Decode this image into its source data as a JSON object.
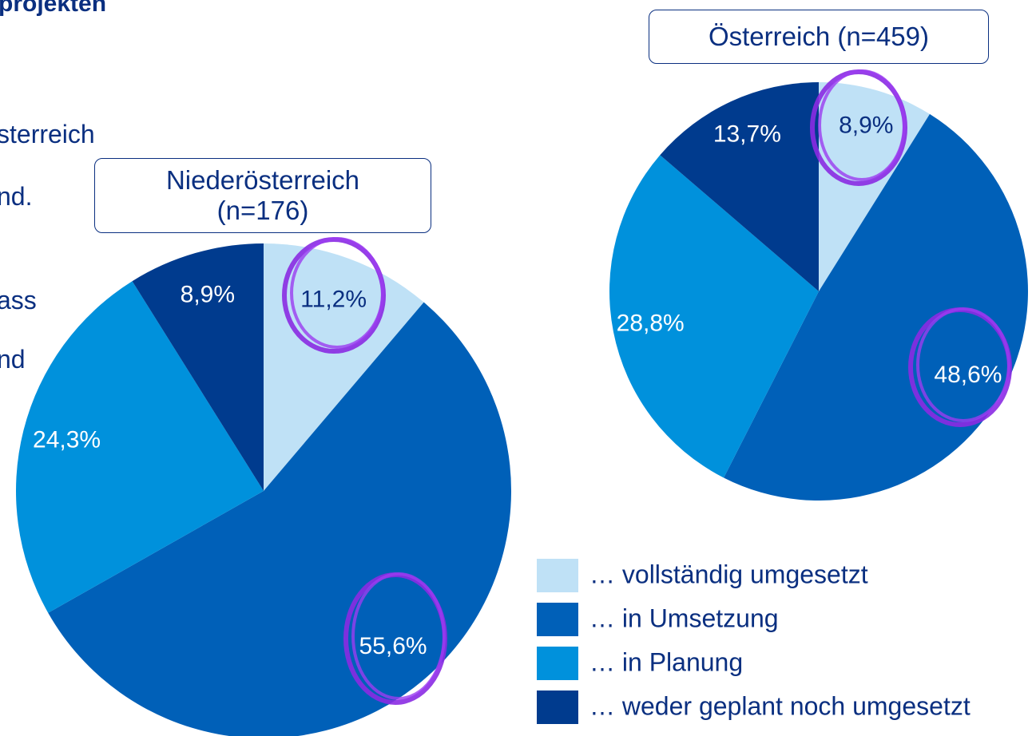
{
  "slide_text": {
    "heading": "projekten",
    "lines": [
      "sterreich",
      "nd.",
      "ass",
      "nd"
    ]
  },
  "chart_data": [
    {
      "type": "pie",
      "title": "Niederösterreich (n=176)",
      "categories": [
        "… vollständig umgesetzt",
        "… in Umsetzung",
        "… in Planung",
        "… weder geplant noch umgesetzt"
      ],
      "values": [
        11.2,
        55.6,
        24.3,
        8.9
      ],
      "value_labels": [
        "11,2%",
        "55,6%",
        "24,3%",
        "8,9%"
      ],
      "colors": [
        "#bfe1f6",
        "#0060b8",
        "#0091dc",
        "#003b8e"
      ]
    },
    {
      "type": "pie",
      "title": "Österreich (n=459)",
      "categories": [
        "… vollständig umgesetzt",
        "… in Umsetzung",
        "… in Planung",
        "… weder geplant noch umgesetzt"
      ],
      "values": [
        8.9,
        48.6,
        28.8,
        13.7
      ],
      "value_labels": [
        "8,9%",
        "48,6%",
        "28,8%",
        "13,7%"
      ],
      "colors": [
        "#bfe1f6",
        "#0060b8",
        "#0091dc",
        "#003b8e"
      ]
    }
  ]
}
